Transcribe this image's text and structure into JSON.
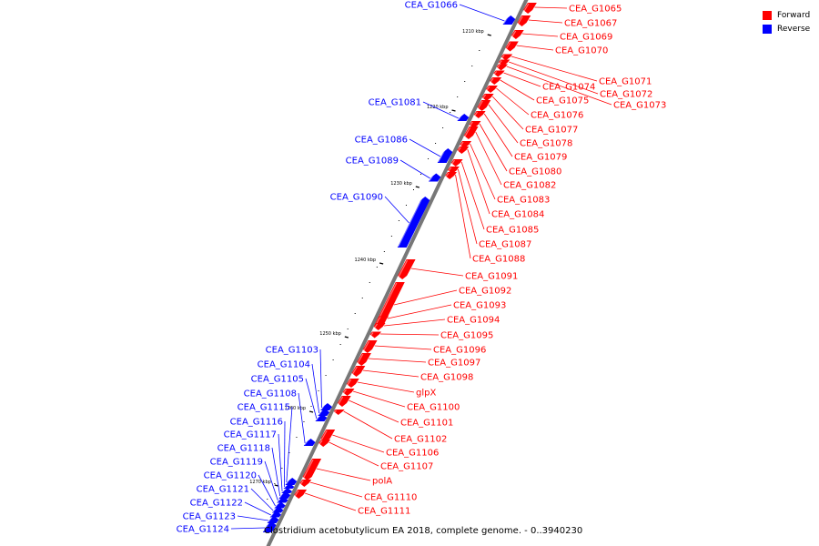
{
  "legend": {
    "forward": {
      "label": "Forward",
      "color": "#ff0000"
    },
    "reverse": {
      "label": "Reverse",
      "color": "#0000ff"
    }
  },
  "caption": "Clostridium acetobutylicum EA 2018, complete genome. - 0..3940230",
  "ticks": [
    "1210 kbp",
    "1220 kbp",
    "1230 kbp",
    "1240 kbp",
    "1250 kbp",
    "1260 kbp",
    "1270 kbp"
  ],
  "genes": [
    {
      "name": "CEA_G1065",
      "strand": "forward"
    },
    {
      "name": "CEA_G1066",
      "strand": "reverse"
    },
    {
      "name": "CEA_G1067",
      "strand": "forward"
    },
    {
      "name": "CEA_G1069",
      "strand": "forward"
    },
    {
      "name": "CEA_G1070",
      "strand": "forward"
    },
    {
      "name": "CEA_G1071",
      "strand": "forward"
    },
    {
      "name": "CEA_G1072",
      "strand": "forward"
    },
    {
      "name": "CEA_G1073",
      "strand": "forward"
    },
    {
      "name": "CEA_G1074",
      "strand": "forward"
    },
    {
      "name": "CEA_G1075",
      "strand": "forward"
    },
    {
      "name": "CEA_G1076",
      "strand": "forward"
    },
    {
      "name": "CEA_G1077",
      "strand": "forward"
    },
    {
      "name": "CEA_G1078",
      "strand": "forward"
    },
    {
      "name": "CEA_G1079",
      "strand": "forward"
    },
    {
      "name": "CEA_G1080",
      "strand": "forward"
    },
    {
      "name": "CEA_G1081",
      "strand": "reverse"
    },
    {
      "name": "CEA_G1082",
      "strand": "forward"
    },
    {
      "name": "CEA_G1083",
      "strand": "forward"
    },
    {
      "name": "CEA_G1084",
      "strand": "forward"
    },
    {
      "name": "CEA_G1085",
      "strand": "forward"
    },
    {
      "name": "CEA_G1086",
      "strand": "reverse"
    },
    {
      "name": "CEA_G1087",
      "strand": "forward"
    },
    {
      "name": "CEA_G1088",
      "strand": "forward"
    },
    {
      "name": "CEA_G1089",
      "strand": "reverse"
    },
    {
      "name": "CEA_G1090",
      "strand": "reverse"
    },
    {
      "name": "CEA_G1091",
      "strand": "forward"
    },
    {
      "name": "CEA_G1092",
      "strand": "forward"
    },
    {
      "name": "CEA_G1093",
      "strand": "forward"
    },
    {
      "name": "CEA_G1094",
      "strand": "forward"
    },
    {
      "name": "CEA_G1095",
      "strand": "forward"
    },
    {
      "name": "CEA_G1096",
      "strand": "forward"
    },
    {
      "name": "CEA_G1097",
      "strand": "forward"
    },
    {
      "name": "CEA_G1098",
      "strand": "forward"
    },
    {
      "name": "glpX",
      "strand": "forward"
    },
    {
      "name": "CEA_G1100",
      "strand": "forward"
    },
    {
      "name": "CEA_G1101",
      "strand": "forward"
    },
    {
      "name": "CEA_G1102",
      "strand": "forward"
    },
    {
      "name": "CEA_G1103",
      "strand": "reverse"
    },
    {
      "name": "CEA_G1104",
      "strand": "reverse"
    },
    {
      "name": "CEA_G1105",
      "strand": "reverse"
    },
    {
      "name": "CEA_G1106",
      "strand": "forward"
    },
    {
      "name": "CEA_G1107",
      "strand": "forward"
    },
    {
      "name": "CEA_G1108",
      "strand": "reverse"
    },
    {
      "name": "polA",
      "strand": "forward"
    },
    {
      "name": "CEA_G1110",
      "strand": "forward"
    },
    {
      "name": "CEA_G1111",
      "strand": "forward"
    },
    {
      "name": "CEA_G1115",
      "strand": "reverse"
    },
    {
      "name": "CEA_G1116",
      "strand": "reverse"
    },
    {
      "name": "CEA_G1117",
      "strand": "reverse"
    },
    {
      "name": "CEA_G1118",
      "strand": "reverse"
    },
    {
      "name": "CEA_G1119",
      "strand": "reverse"
    },
    {
      "name": "CEA_G1120",
      "strand": "reverse"
    },
    {
      "name": "CEA_G1121",
      "strand": "reverse"
    },
    {
      "name": "CEA_G1122",
      "strand": "reverse"
    },
    {
      "name": "CEA_G1123",
      "strand": "reverse"
    },
    {
      "name": "CEA_G1124",
      "strand": "reverse"
    }
  ]
}
